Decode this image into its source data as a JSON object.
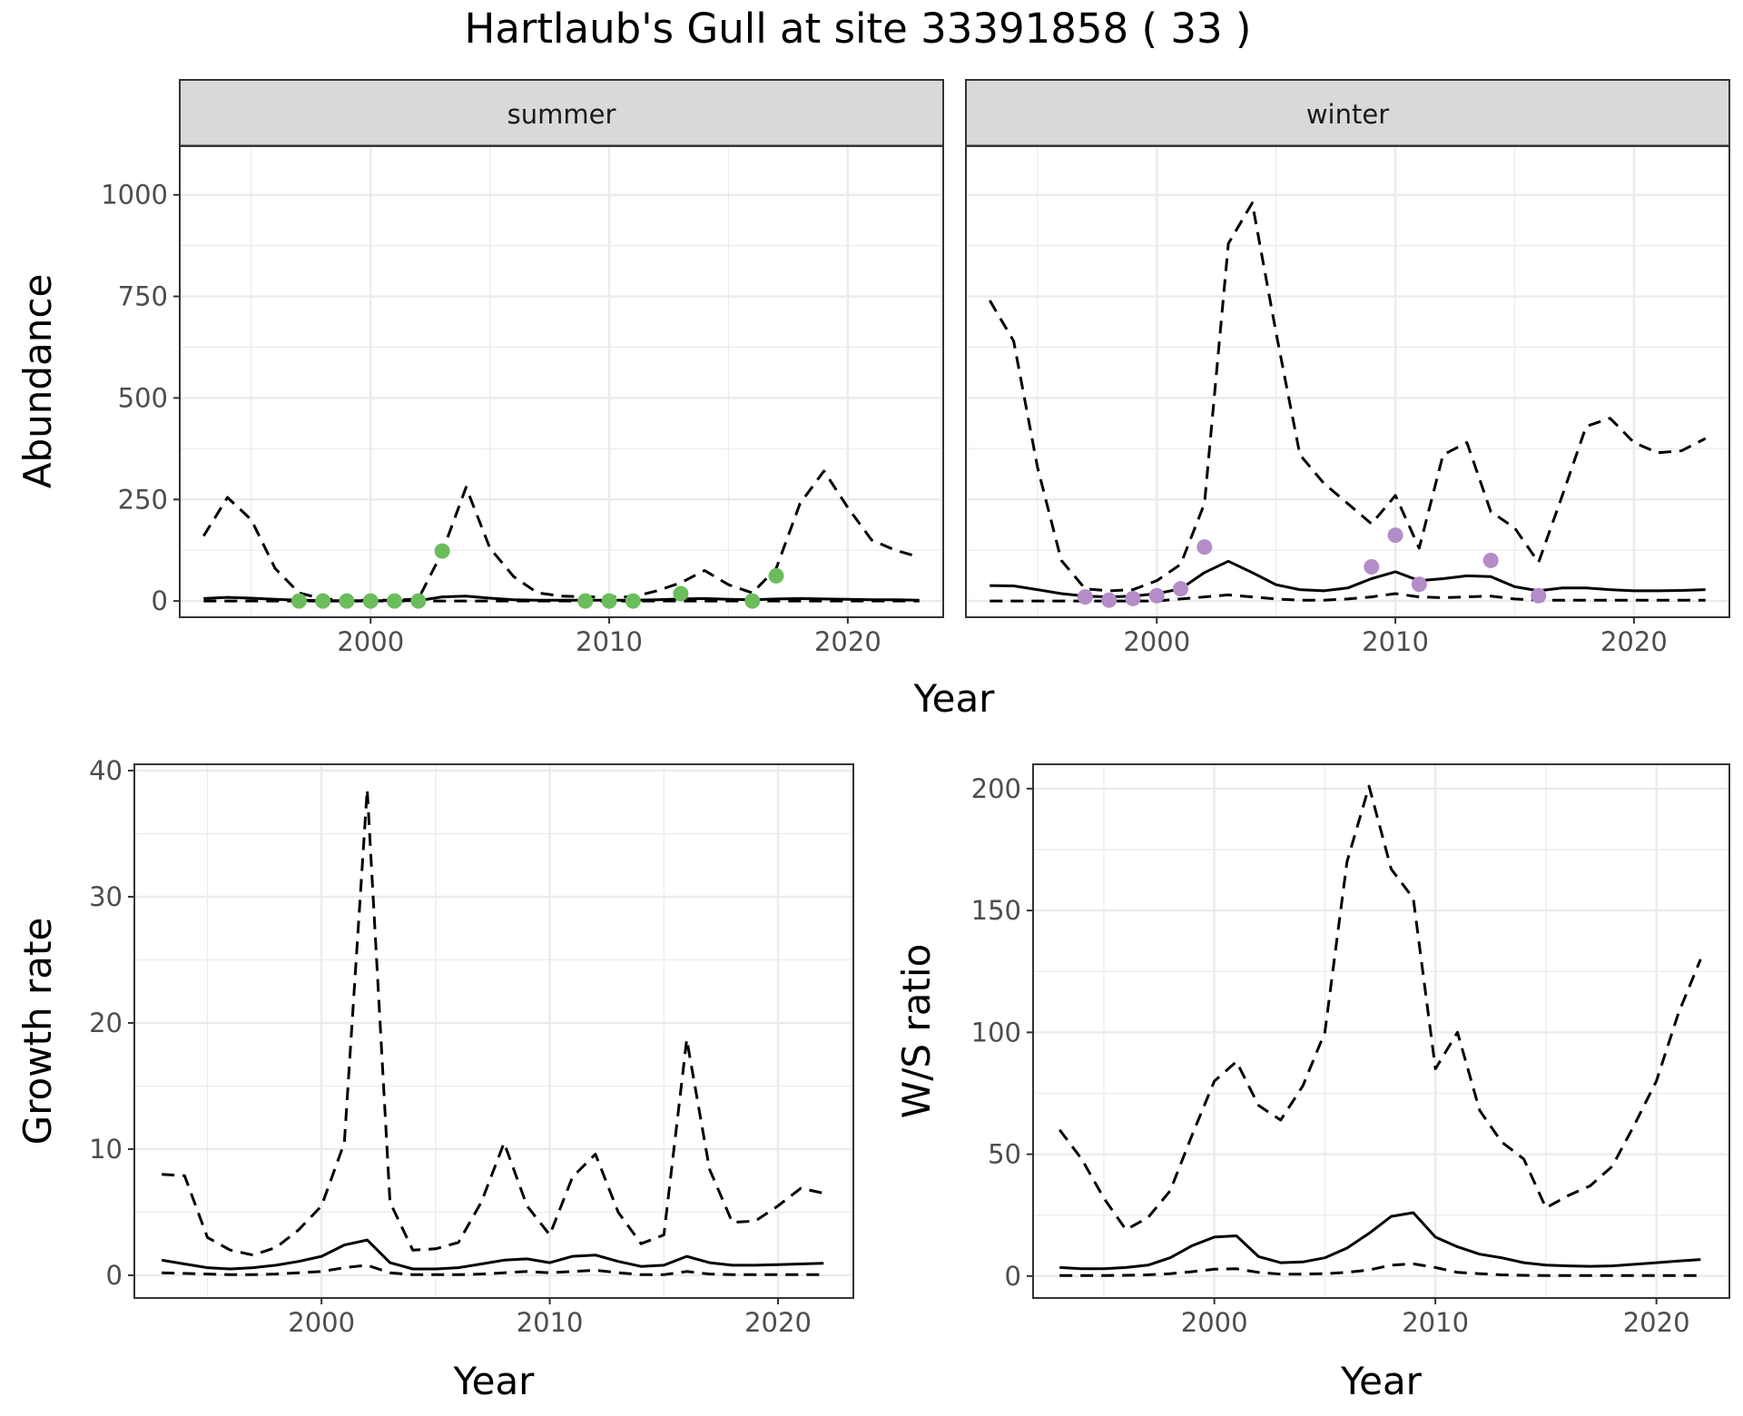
{
  "title": "Hartlaub's Gull at site 33391858 ( 33 )",
  "colors": {
    "summer_points": "#6bbd5b",
    "winter_points": "#b48cc8",
    "line": "#000000",
    "strip_fill": "#d9d9d9",
    "grid": "#ebebeb"
  },
  "chart_data": [
    {
      "id": "abundance",
      "type": "line",
      "ylabel": "Abundance",
      "xlabel": "Year",
      "xlim": [
        1992,
        2024
      ],
      "ylim": [
        -40,
        1120
      ],
      "xticks": [
        2000,
        2010,
        2020
      ],
      "yticks": [
        0,
        250,
        500,
        750,
        1000
      ],
      "grid": true,
      "panels": [
        {
          "strip": "summer",
          "point_color": "#6bbd5b",
          "x": [
            1993,
            1994,
            1995,
            1996,
            1997,
            1998,
            1999,
            2000,
            2001,
            2002,
            2003,
            2004,
            2005,
            2006,
            2007,
            2008,
            2009,
            2010,
            2011,
            2012,
            2013,
            2014,
            2015,
            2016,
            2017,
            2018,
            2019,
            2020,
            2021,
            2022,
            2023
          ],
          "series": [
            {
              "style": "solid",
              "values": [
                6,
                9,
                7,
                4,
                2,
                1,
                1,
                1,
                1,
                1,
                10,
                12,
                7,
                3,
                2,
                2,
                2,
                2,
                2,
                3,
                5,
                6,
                4,
                3,
                5,
                6,
                5,
                4,
                3,
                3,
                2
              ]
            },
            {
              "style": "dashed-upper",
              "values": [
                160,
                255,
                200,
                80,
                20,
                5,
                2,
                2,
                2,
                5,
                120,
                280,
                130,
                60,
                20,
                12,
                10,
                10,
                10,
                25,
                45,
                75,
                40,
                20,
                80,
                240,
                320,
                230,
                150,
                125,
                108
              ]
            },
            {
              "style": "dashed-lower",
              "values": [
                0,
                0,
                0,
                0,
                0,
                0,
                0,
                0,
                0,
                0,
                0,
                0,
                0,
                0,
                0,
                0,
                0,
                0,
                0,
                0,
                0,
                0,
                0,
                0,
                0,
                0,
                0,
                0,
                0,
                0,
                0
              ]
            }
          ],
          "points": {
            "x": [
              1997,
              1998,
              1999,
              2000,
              2001,
              2002,
              2003,
              2009,
              2010,
              2011,
              2013,
              2016,
              2017
            ],
            "y": [
              0,
              0,
              0,
              0,
              0,
              0,
              123,
              0,
              0,
              0,
              18,
              0,
              62
            ]
          }
        },
        {
          "strip": "winter",
          "point_color": "#b48cc8",
          "x": [
            1993,
            1994,
            1995,
            1996,
            1997,
            1998,
            1999,
            2000,
            2001,
            2002,
            2003,
            2004,
            2005,
            2006,
            2007,
            2008,
            2009,
            2010,
            2011,
            2012,
            2013,
            2014,
            2015,
            2016,
            2017,
            2018,
            2019,
            2020,
            2021,
            2022,
            2023
          ],
          "series": [
            {
              "style": "solid",
              "values": [
                38,
                37,
                28,
                18,
                12,
                10,
                12,
                18,
                30,
                70,
                98,
                70,
                40,
                28,
                25,
                32,
                55,
                72,
                50,
                55,
                62,
                60,
                35,
                25,
                32,
                32,
                28,
                25,
                25,
                26,
                28
              ]
            },
            {
              "style": "dashed-upper",
              "values": [
                740,
                640,
                330,
                100,
                30,
                25,
                28,
                50,
                90,
                240,
                880,
                980,
                660,
                360,
                290,
                240,
                190,
                260,
                130,
                360,
                390,
                220,
                180,
                95,
                260,
                430,
                450,
                390,
                365,
                370,
                400
              ]
            },
            {
              "style": "dashed-lower",
              "values": [
                0,
                0,
                0,
                0,
                0,
                0,
                0,
                0,
                5,
                10,
                15,
                10,
                5,
                2,
                2,
                5,
                10,
                18,
                10,
                8,
                10,
                12,
                5,
                2,
                2,
                2,
                2,
                2,
                2,
                2,
                2
              ]
            }
          ],
          "points": {
            "x": [
              1997,
              1998,
              1999,
              2000,
              2001,
              2002,
              2009,
              2010,
              2011,
              2014,
              2016
            ],
            "y": [
              10,
              2,
              6,
              13,
              30,
              133,
              84,
              162,
              41,
              100,
              13
            ]
          }
        }
      ]
    },
    {
      "id": "growth",
      "type": "line",
      "ylabel": "Growth rate",
      "xlabel": "Year",
      "xlim": [
        1991.8,
        2023.3
      ],
      "ylim": [
        -1.8,
        40.5
      ],
      "xticks": [
        2000,
        2010,
        2020
      ],
      "yticks": [
        0,
        10,
        20,
        30,
        40
      ],
      "grid": true,
      "x": [
        1993,
        1994,
        1995,
        1996,
        1997,
        1998,
        1999,
        2000,
        2001,
        2002,
        2003,
        2004,
        2005,
        2006,
        2007,
        2008,
        2009,
        2010,
        2011,
        2012,
        2013,
        2014,
        2015,
        2016,
        2017,
        2018,
        2019,
        2020,
        2021,
        2022
      ],
      "series": [
        {
          "style": "solid",
          "values": [
            1.2,
            0.9,
            0.6,
            0.5,
            0.6,
            0.8,
            1.1,
            1.5,
            2.4,
            2.8,
            1.0,
            0.5,
            0.5,
            0.6,
            0.9,
            1.2,
            1.3,
            1.0,
            1.5,
            1.6,
            1.1,
            0.7,
            0.8,
            1.5,
            1.0,
            0.8,
            0.8,
            0.85,
            0.9,
            0.95
          ]
        },
        {
          "style": "dashed-upper",
          "values": [
            8.0,
            7.9,
            3.0,
            2.0,
            1.6,
            2.2,
            3.6,
            5.5,
            10.5,
            38.5,
            5.8,
            2.0,
            2.1,
            2.6,
            5.8,
            10.5,
            5.5,
            3.2,
            7.8,
            9.6,
            5.0,
            2.5,
            3.2,
            18.7,
            8.4,
            4.2,
            4.3,
            5.5,
            6.9,
            6.5
          ]
        },
        {
          "style": "dashed-lower",
          "values": [
            0.2,
            0.15,
            0.1,
            0.05,
            0.05,
            0.1,
            0.2,
            0.3,
            0.6,
            0.8,
            0.2,
            0.05,
            0.05,
            0.05,
            0.1,
            0.2,
            0.3,
            0.2,
            0.3,
            0.4,
            0.2,
            0.05,
            0.05,
            0.3,
            0.1,
            0.05,
            0.05,
            0.05,
            0.05,
            0.05
          ]
        }
      ]
    },
    {
      "id": "ratio",
      "type": "line",
      "ylabel": "W/S ratio",
      "xlabel": "Year",
      "xlim": [
        1991.8,
        2023.3
      ],
      "ylim": [
        -9,
        210
      ],
      "xticks": [
        2000,
        2010,
        2020
      ],
      "yticks": [
        0,
        50,
        100,
        150,
        200
      ],
      "grid": true,
      "x": [
        1993,
        1994,
        1995,
        1996,
        1997,
        1998,
        1999,
        2000,
        2001,
        2002,
        2003,
        2004,
        2005,
        2006,
        2007,
        2008,
        2009,
        2010,
        2011,
        2012,
        2013,
        2014,
        2015,
        2016,
        2017,
        2018,
        2019,
        2020,
        2021,
        2022
      ],
      "series": [
        {
          "style": "solid",
          "values": [
            3.5,
            3.0,
            3.0,
            3.5,
            4.5,
            7.5,
            12.5,
            16.0,
            16.5,
            8.0,
            5.5,
            5.8,
            7.5,
            11.5,
            17.5,
            24.5,
            26.0,
            16.0,
            12.0,
            9.0,
            7.5,
            5.5,
            4.5,
            4.2,
            4.0,
            4.2,
            4.8,
            5.5,
            6.2,
            6.8
          ]
        },
        {
          "style": "dashed-upper",
          "values": [
            60,
            48,
            32,
            19,
            24,
            35,
            58,
            80,
            88,
            70,
            64,
            78,
            100,
            170,
            201,
            167,
            155,
            85,
            100,
            68,
            55,
            48,
            28,
            33,
            37,
            45,
            62,
            80,
            108,
            130
          ]
        },
        {
          "style": "dashed-lower",
          "values": [
            0.2,
            0.2,
            0.2,
            0.3,
            0.5,
            1.0,
            1.8,
            2.8,
            3.0,
            1.5,
            0.8,
            0.8,
            1.0,
            1.5,
            2.5,
            4.5,
            5.0,
            3.5,
            1.5,
            1.0,
            0.5,
            0.3,
            0.2,
            0.2,
            0.2,
            0.2,
            0.2,
            0.2,
            0.2,
            0.2
          ]
        }
      ]
    }
  ]
}
